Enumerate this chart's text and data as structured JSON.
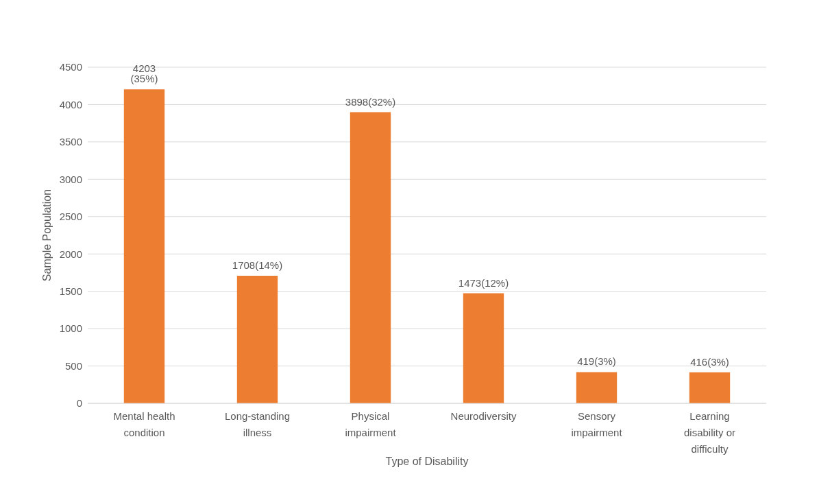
{
  "chart_data": {
    "type": "bar",
    "xlabel": "Type of Disability",
    "ylabel": "Sample Population",
    "categories": [
      "Mental health condition",
      "Long-standing illness",
      "Physical impairment",
      "Neurodiversity",
      "Sensory impairment",
      "Learning disability or difficulty"
    ],
    "values": [
      4203,
      1708,
      3898,
      1473,
      419,
      416
    ],
    "value_labels": [
      "4203 (35%)",
      "1708(14%)",
      "3898(32%)",
      "1473(12%)",
      "419(3%)",
      "416(3%)"
    ],
    "color": "#ed7d31",
    "ylim": [
      0,
      4500
    ],
    "yticks": [
      0,
      500,
      1000,
      1500,
      2000,
      2500,
      3000,
      3500,
      4000,
      4500
    ],
    "grid": "y",
    "legend": false
  }
}
